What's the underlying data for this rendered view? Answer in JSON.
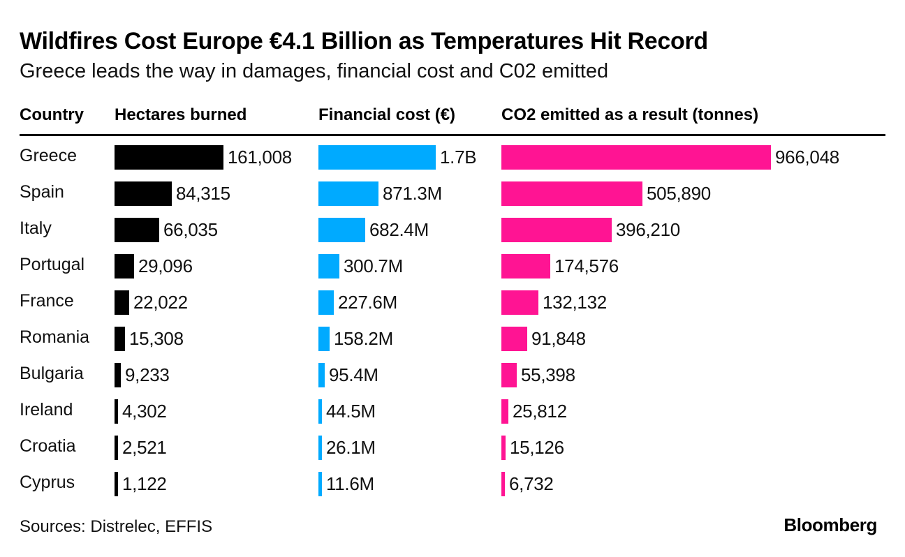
{
  "title": "Wildfires Cost Europe €4.1 Billion as Temperatures Hit Record",
  "subtitle": "Greece leads the way in damages, financial cost and C02 emitted",
  "source": "Sources: Distrelec, EFFIS",
  "logo": "Bloomberg",
  "colors": {
    "hectares": "#000000",
    "financial": "#00aaff",
    "co2": "#ff1493"
  },
  "chart_data": {
    "type": "bar",
    "title": "Wildfires Cost Europe €4.1 Billion as Temperatures Hit Record",
    "subtitle": "Greece leads the way in damages, financial cost and C02 emitted",
    "orientation": "horizontal",
    "category_header": "Country",
    "categories": [
      "Greece",
      "Spain",
      "Italy",
      "Portugal",
      "France",
      "Romania",
      "Bulgaria",
      "Ireland",
      "Croatia",
      "Cyprus"
    ],
    "series": [
      {
        "name": "Hectares burned",
        "values": [
          161008,
          84315,
          66035,
          29096,
          22022,
          15308,
          9233,
          4302,
          2521,
          1122
        ],
        "labels": [
          "161,008",
          "84,315",
          "66,035",
          "29,096",
          "22,022",
          "15,308",
          "9,233",
          "4,302",
          "2,521",
          "1,122"
        ]
      },
      {
        "name": "Financial cost (€)",
        "values": [
          1700000000,
          871300000,
          682400000,
          300700000,
          227600000,
          158200000,
          95400000,
          44500000,
          26100000,
          11600000
        ],
        "labels": [
          "1.7B",
          "871.3M",
          "682.4M",
          "300.7M",
          "227.6M",
          "158.2M",
          "95.4M",
          "44.5M",
          "26.1M",
          "11.6M"
        ]
      },
      {
        "name": "CO2 emitted as a result (tonnes)",
        "values": [
          966048,
          505890,
          396210,
          174576,
          132132,
          91848,
          55398,
          25812,
          15126,
          6732
        ],
        "labels": [
          "966,048",
          "505,890",
          "396,210",
          "174,576",
          "132,132",
          "91,848",
          "55,398",
          "25,812",
          "15,126",
          "6,732"
        ]
      }
    ],
    "source": "Sources: Distrelec, EFFIS"
  }
}
